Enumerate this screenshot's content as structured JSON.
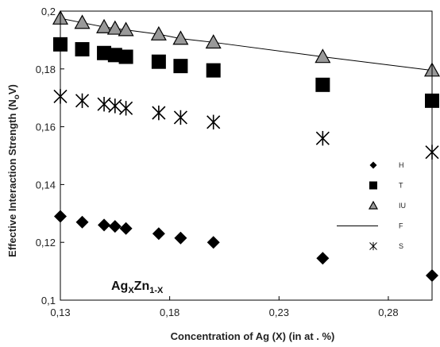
{
  "chart_data": {
    "type": "scatter",
    "title": "",
    "xlabel": "Concentration of Ag (X) (in at . %)",
    "ylabel": {
      "main": "Effective Interaction Strength (N",
      "sub": "o",
      "end": "V)"
    },
    "annotation": {
      "base1": "Ag",
      "sub1": "X",
      "base2": "Zn",
      "sub2": "1-X"
    },
    "xlim": [
      0.13,
      0.3
    ],
    "ylim": [
      0.1,
      0.2
    ],
    "xticks": [
      0.13,
      0.18,
      0.23,
      0.28
    ],
    "xtick_labels": [
      "0,13",
      "0,18",
      "0,23",
      "0,28"
    ],
    "yticks": [
      0.1,
      0.12,
      0.14,
      0.16,
      0.18,
      0.2
    ],
    "ytick_labels": [
      "0,1",
      "0,12",
      "0,14",
      "0,16",
      "0,18",
      "0,2"
    ],
    "grid": false,
    "legend_position": "right",
    "x": [
      0.13,
      0.14,
      0.15,
      0.155,
      0.16,
      0.175,
      0.185,
      0.2,
      0.25,
      0.3
    ],
    "series": [
      {
        "name": "H",
        "marker": "diamond",
        "color": "#000000",
        "values": [
          0.129,
          0.127,
          0.126,
          0.1255,
          0.1248,
          0.123,
          0.1215,
          0.12,
          0.1145,
          0.1085
        ]
      },
      {
        "name": "T",
        "marker": "square",
        "color": "#000000",
        "values": [
          0.1885,
          0.1868,
          0.1855,
          0.1848,
          0.1842,
          0.1825,
          0.181,
          0.1795,
          0.1745,
          0.169
        ]
      },
      {
        "name": "IU",
        "marker": "triangle",
        "color": "#999999",
        "values": [
          0.1975,
          0.196,
          0.1945,
          0.194,
          0.1935,
          0.192,
          0.1905,
          0.1892,
          0.1842,
          0.1795
        ]
      },
      {
        "name": "F",
        "marker": "line",
        "color": "#000000",
        "values": [
          0.1975,
          0.196,
          0.1945,
          0.194,
          0.1935,
          0.192,
          0.1905,
          0.1892,
          0.1842,
          0.1795
        ]
      },
      {
        "name": "S",
        "marker": "asterisk",
        "color": "#000000",
        "values": [
          0.1705,
          0.169,
          0.1678,
          0.1672,
          0.1664,
          0.1648,
          0.1632,
          0.1616,
          0.156,
          0.1512
        ]
      }
    ]
  }
}
